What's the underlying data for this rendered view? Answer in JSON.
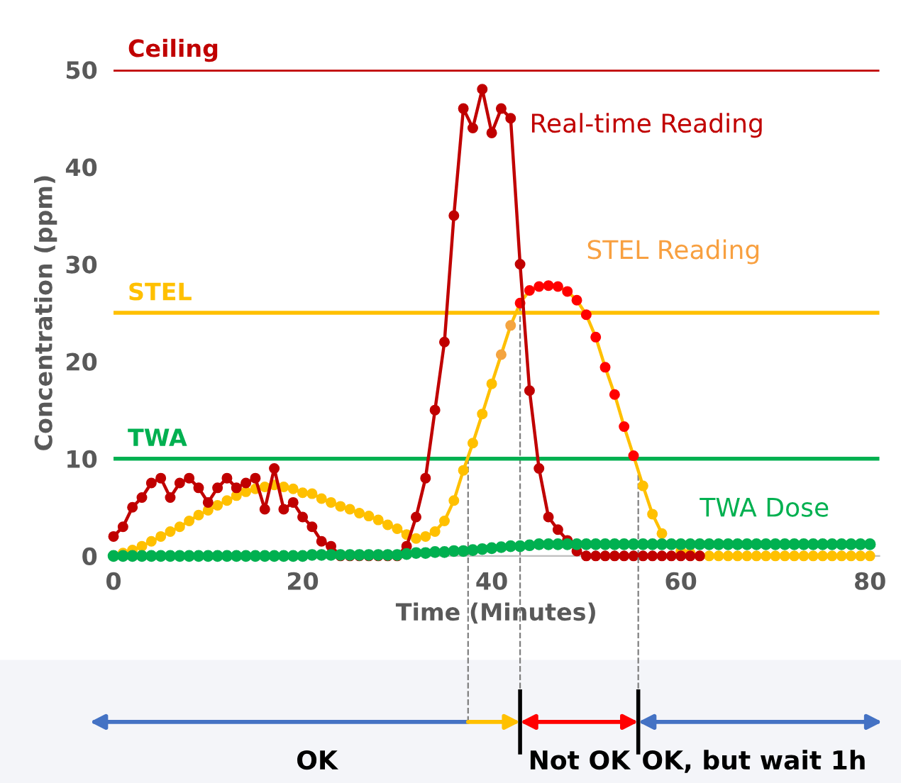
{
  "chart_data": {
    "type": "line",
    "xlabel": "Time (Minutes)",
    "ylabel": "Concentration (ppm)",
    "xlim": [
      0,
      81
    ],
    "ylim": [
      0,
      50
    ],
    "xticks": [
      0,
      20,
      40,
      60,
      80
    ],
    "yticks": [
      0,
      10,
      20,
      30,
      40,
      50
    ],
    "grid": false,
    "legend": false,
    "marker": "circle",
    "line_style": "solid",
    "x": [
      0,
      1,
      2,
      3,
      4,
      5,
      6,
      7,
      8,
      9,
      10,
      11,
      12,
      13,
      14,
      15,
      16,
      17,
      18,
      19,
      20,
      21,
      22,
      23,
      24,
      25,
      26,
      27,
      28,
      29,
      30,
      31,
      32,
      33,
      34,
      35,
      36,
      37,
      38,
      39,
      40,
      41,
      42,
      43,
      44,
      45,
      46,
      47,
      48,
      49,
      50,
      51,
      52,
      53,
      54,
      55,
      56,
      57,
      58,
      59,
      60,
      61,
      62,
      63,
      64,
      65,
      66,
      67,
      68,
      69,
      70,
      71,
      72,
      73,
      74,
      75,
      76,
      77,
      78,
      79,
      80
    ],
    "series": [
      {
        "name": "TWA Dose",
        "type": "scatter",
        "color": "#00b050",
        "values": [
          0,
          0,
          0,
          0,
          0,
          0,
          0,
          0,
          0,
          0,
          0,
          0,
          0,
          0,
          0,
          0,
          0,
          0,
          0,
          0,
          0,
          0.1,
          0.1,
          0.1,
          0.1,
          0.1,
          0.1,
          0.1,
          0.1,
          0.1,
          0.1,
          0.2,
          0.3,
          0.3,
          0.4,
          0.4,
          0.5,
          0.5,
          0.6,
          0.7,
          0.8,
          0.9,
          1,
          1,
          1.1,
          1.2,
          1.2,
          1.2,
          1.2,
          1.2,
          1.2,
          1.2,
          1.2,
          1.2,
          1.2,
          1.2,
          1.2,
          1.2,
          1.2,
          1.2,
          1.2,
          1.2,
          1.2,
          1.2,
          1.2,
          1.2,
          1.2,
          1.2,
          1.2,
          1.2,
          1.2,
          1.2,
          1.2,
          1.2,
          1.2,
          1.2,
          1.2,
          1.2,
          1.2,
          1.2,
          1.2
        ]
      },
      {
        "name": "Real-time Reading",
        "color": "#c00000",
        "values": [
          2,
          3,
          5,
          6,
          7.5,
          8,
          6,
          7.5,
          8,
          7,
          5.5,
          7,
          8,
          7,
          7.5,
          8,
          4.8,
          9,
          4.8,
          5.5,
          4,
          3,
          1.5,
          1,
          0,
          0,
          0,
          0,
          0,
          0,
          0,
          1,
          4,
          8,
          15,
          22,
          35,
          46,
          44,
          48,
          43.5,
          46,
          45,
          30,
          17,
          9,
          4,
          2.7,
          1.6,
          0.5,
          0,
          0,
          0,
          0,
          0,
          0,
          0,
          0,
          0,
          0,
          0,
          0,
          0,
          null,
          null,
          null,
          null,
          null,
          null,
          null,
          null,
          null,
          null,
          null,
          null,
          null,
          null,
          null,
          null,
          null,
          null
        ]
      },
      {
        "name": "STEL Reading",
        "color": "#ffc000",
        "values": [
          0,
          0.3,
          0.6,
          1,
          1.5,
          2,
          2.5,
          3,
          3.6,
          4.2,
          4.7,
          5.2,
          5.7,
          6.2,
          6.6,
          6.9,
          7.1,
          7.3,
          7.1,
          6.9,
          6.5,
          6.4,
          5.9,
          5.5,
          5.1,
          4.8,
          4.4,
          4.1,
          3.7,
          3.2,
          2.8,
          2.2,
          1.8,
          2,
          2.5,
          3.6,
          5.7,
          8.8,
          11.6,
          14.6,
          17.7,
          20.7,
          23.7,
          26,
          27.3,
          27.7,
          27.8,
          27.7,
          27.2,
          26.3,
          24.8,
          22.5,
          19.4,
          16.6,
          13.3,
          10.3,
          7.2,
          4.3,
          2.3,
          null,
          0.5,
          0.3,
          0,
          0,
          0,
          0,
          0,
          0,
          0,
          0,
          0,
          0,
          0,
          0,
          0,
          0,
          0,
          0,
          0,
          0,
          0
        ],
        "colors": [
          "#ffc000",
          "#ffc000",
          "#ffc000",
          "#ffc000",
          "#ffc000",
          "#ffc000",
          "#ffc000",
          "#ffc000",
          "#ffc000",
          "#ffc000",
          "#ffc000",
          "#ffc000",
          "#ffc000",
          "#ffc000",
          "#ffc000",
          "#ffc000",
          "#ffc000",
          "#ffc000",
          "#ffc000",
          "#ffc000",
          "#ffc000",
          "#ffc000",
          "#ffc000",
          "#ffc000",
          "#ffc000",
          "#ffc000",
          "#ffc000",
          "#ffc000",
          "#ffc000",
          "#ffc000",
          "#ffc000",
          "#ffc000",
          "#ffc000",
          "#ffc000",
          "#ffc000",
          "#ffc000",
          "#ffc000",
          "#ffc000",
          "#ffc000",
          "#ffc000",
          "#ffc000",
          "#f4a440",
          "#f4a440",
          "#ff0000",
          "#ff0000",
          "#ff0000",
          "#ff0000",
          "#ff0000",
          "#ff0000",
          "#ff0000",
          "#ff0000",
          "#ff0000",
          "#ff0000",
          "#ff0000",
          "#ff0000",
          "#ff0000",
          "#ffc000",
          "#ffc000",
          "#ffc000",
          "#ffc000",
          "#ffc000",
          "#ffc000",
          "#ffc000",
          "#ffc000",
          "#ffc000",
          "#ffc000",
          "#ffc000",
          "#ffc000",
          "#ffc000",
          "#ffc000",
          "#ffc000",
          "#ffc000",
          "#ffc000",
          "#ffc000",
          "#ffc000",
          "#ffc000",
          "#ffc000",
          "#ffc000",
          "#ffc000",
          "#ffc000",
          "#ffc000"
        ]
      }
    ],
    "ref_lines": [
      {
        "axis": "y",
        "value": 50,
        "label": "Ceiling",
        "color": "#c00000"
      },
      {
        "axis": "y",
        "value": 25,
        "label": "STEL",
        "color": "#ffc000"
      },
      {
        "axis": "y",
        "value": 10,
        "label": "TWA",
        "color": "#00b050"
      },
      {
        "axis": "x",
        "value": 37.5,
        "color": "#7f7f7f",
        "line_style": "dashed"
      },
      {
        "axis": "x",
        "value": 43,
        "color": "#7f7f7f",
        "line_style": "dashed"
      },
      {
        "axis": "x",
        "value": 55.5,
        "color": "#7f7f7f",
        "line_style": "dashed"
      }
    ],
    "annotations": [
      "OK",
      "Not OK",
      "OK, but wait 1h"
    ]
  }
}
